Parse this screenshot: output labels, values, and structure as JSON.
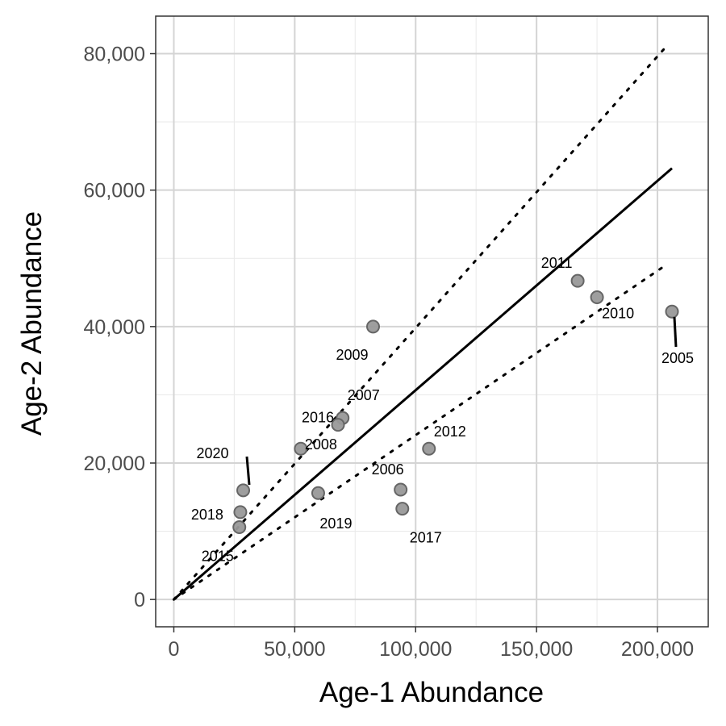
{
  "chart_data": {
    "type": "scatter",
    "title": "",
    "xlabel": "Age-1 Abundance",
    "ylabel": "Age-2 Abundance",
    "xlim": [
      -7500,
      221000
    ],
    "ylim": [
      -4000,
      85500
    ],
    "x_ticks": [
      0,
      50000,
      100000,
      150000,
      200000
    ],
    "x_tick_labels": [
      "0",
      "50,000",
      "100,000",
      "150,000",
      "200,000"
    ],
    "y_ticks": [
      0,
      20000,
      40000,
      60000,
      80000
    ],
    "y_tick_labels": [
      "0",
      "20,000",
      "40,000",
      "60,000",
      "80,000"
    ],
    "x_minor": [
      25000,
      75000,
      125000,
      175000
    ],
    "y_minor": [
      10000,
      30000,
      50000,
      70000
    ],
    "grid": true,
    "point_color": "#999999",
    "point_stroke": "#666666",
    "line_color": "#000000",
    "points": [
      {
        "label": "2005",
        "x": 206000,
        "y": 42200
      },
      {
        "label": "2006",
        "x": 93800,
        "y": 16100
      },
      {
        "label": "2007",
        "x": 69800,
        "y": 26600
      },
      {
        "label": "2008",
        "x": 52500,
        "y": 22100
      },
      {
        "label": "2009",
        "x": 82400,
        "y": 40000
      },
      {
        "label": "2010",
        "x": 175000,
        "y": 44300
      },
      {
        "label": "2011",
        "x": 167000,
        "y": 46700
      },
      {
        "label": "2012",
        "x": 105500,
        "y": 22100
      },
      {
        "label": "2015",
        "x": 27100,
        "y": 10600
      },
      {
        "label": "2016",
        "x": 67900,
        "y": 25600
      },
      {
        "label": "2017",
        "x": 94500,
        "y": 13300
      },
      {
        "label": "2018",
        "x": 27500,
        "y": 12800
      },
      {
        "label": "2019",
        "x": 59700,
        "y": 15600
      },
      {
        "label": "2020",
        "x": 28700,
        "y": 16000
      }
    ],
    "lines": [
      {
        "style": "solid",
        "x": [
          0,
          206000
        ],
        "y": [
          0,
          63200
        ]
      },
      {
        "style": "dotted",
        "x": [
          0,
          203000
        ],
        "y": [
          0,
          80800
        ]
      },
      {
        "style": "dotted",
        "x": [
          0,
          203000
        ],
        "y": [
          0,
          48900
        ]
      }
    ]
  }
}
